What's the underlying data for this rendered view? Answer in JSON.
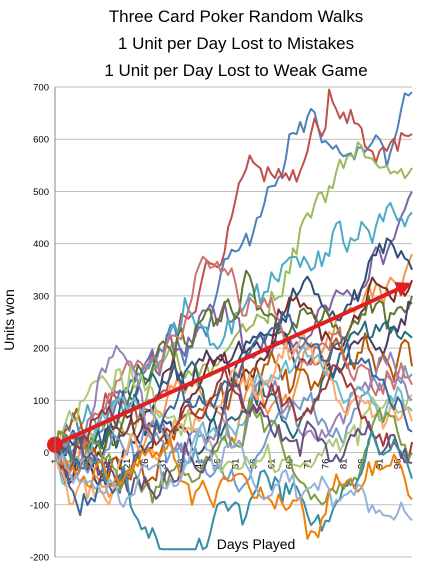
{
  "chart_data": {
    "type": "line",
    "title": [
      "Three Card Poker Random Walks",
      "1 Unit per Day Lost to Mistakes",
      "1 Unit per Day Lost to Weak Game"
    ],
    "xlabel": "Days Played",
    "ylabel": "Units won",
    "ylim": [
      -200,
      700
    ],
    "yticks": [
      -200,
      -100,
      0,
      100,
      200,
      300,
      400,
      500,
      600,
      700
    ],
    "xlim": [
      1,
      100
    ],
    "xticks": [
      1,
      6,
      11,
      16,
      21,
      26,
      31,
      36,
      41,
      46,
      51,
      56,
      61,
      66,
      71,
      76,
      81,
      86,
      91,
      96
    ],
    "grid": true,
    "legend": "none",
    "series_count": 25,
    "series_colors": [
      "#4f81bd",
      "#c0504d",
      "#9bbb59",
      "#8064a2",
      "#4bacc6",
      "#f79646",
      "#2c4d75",
      "#772c2a",
      "#5f7530",
      "#4d3b62",
      "#276a7c",
      "#b65708",
      "#729aca",
      "#cd7371",
      "#afc97a",
      "#9983b5",
      "#6fbdd1",
      "#f9ab6b",
      "#3a679c",
      "#9f3b38",
      "#7e9c40",
      "#664f83",
      "#358ea6",
      "#f07f09",
      "#95b3d7"
    ],
    "series_end_values": [
      690,
      610,
      545,
      500,
      460,
      380,
      350,
      330,
      300,
      285,
      220,
      165,
      150,
      130,
      110,
      100,
      80,
      60,
      40,
      20,
      0,
      -20,
      -50,
      -90,
      -130
    ],
    "trend_arrow": {
      "start": [
        1,
        15
      ],
      "end": [
        100,
        325
      ],
      "color": "#e02020"
    }
  }
}
